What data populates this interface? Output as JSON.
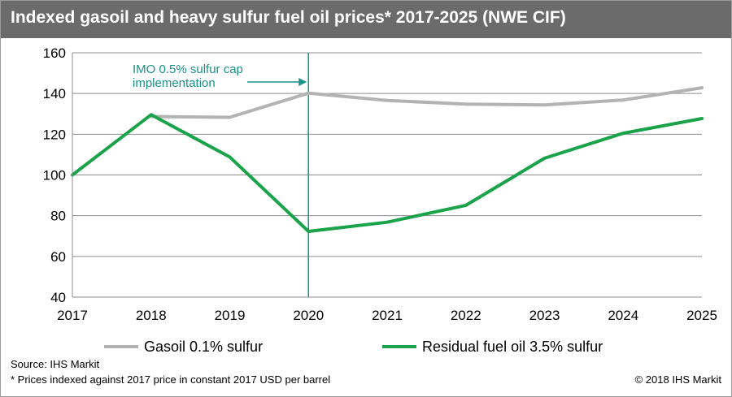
{
  "title": "Indexed gasoil and heavy sulfur fuel oil prices* 2017-2025 (NWE CIF)",
  "source": "Source: IHS Markit",
  "footnote": "* Prices indexed against 2017 price in constant 2017 USD per barrel",
  "copyright": "© 2018 IHS Markit",
  "chart_data": {
    "type": "line",
    "title": "Indexed gasoil and heavy sulfur fuel oil prices* 2017-2025 (NWE CIF)",
    "xlabel": "",
    "ylabel": "",
    "x": [
      "2017",
      "2018",
      "2019",
      "2020",
      "2021",
      "2022",
      "2023",
      "2024",
      "2025"
    ],
    "ylim": [
      40,
      160
    ],
    "yticks": [
      "40",
      "60",
      "80",
      "100",
      "120",
      "140",
      "160"
    ],
    "grid": true,
    "legend_position": "bottom",
    "series": [
      {
        "name": "Gasoil 0.1% sulfur",
        "color": "#b3b3b3",
        "values": [
          null,
          128.7,
          128.3,
          140.2,
          136.6,
          134.8,
          134.4,
          136.8,
          142.8
        ]
      },
      {
        "name": "Residual fuel oil 3.5% sulfur",
        "color": "#1aa34a",
        "values": [
          100,
          129.6,
          108.8,
          72.3,
          76.8,
          85.1,
          108.2,
          120.5,
          127.7
        ]
      }
    ],
    "annotation": {
      "text_line1": "IMO 0.5% sulfur cap",
      "text_line2": "implementation",
      "x": "2020",
      "color": "#1a9187"
    }
  }
}
